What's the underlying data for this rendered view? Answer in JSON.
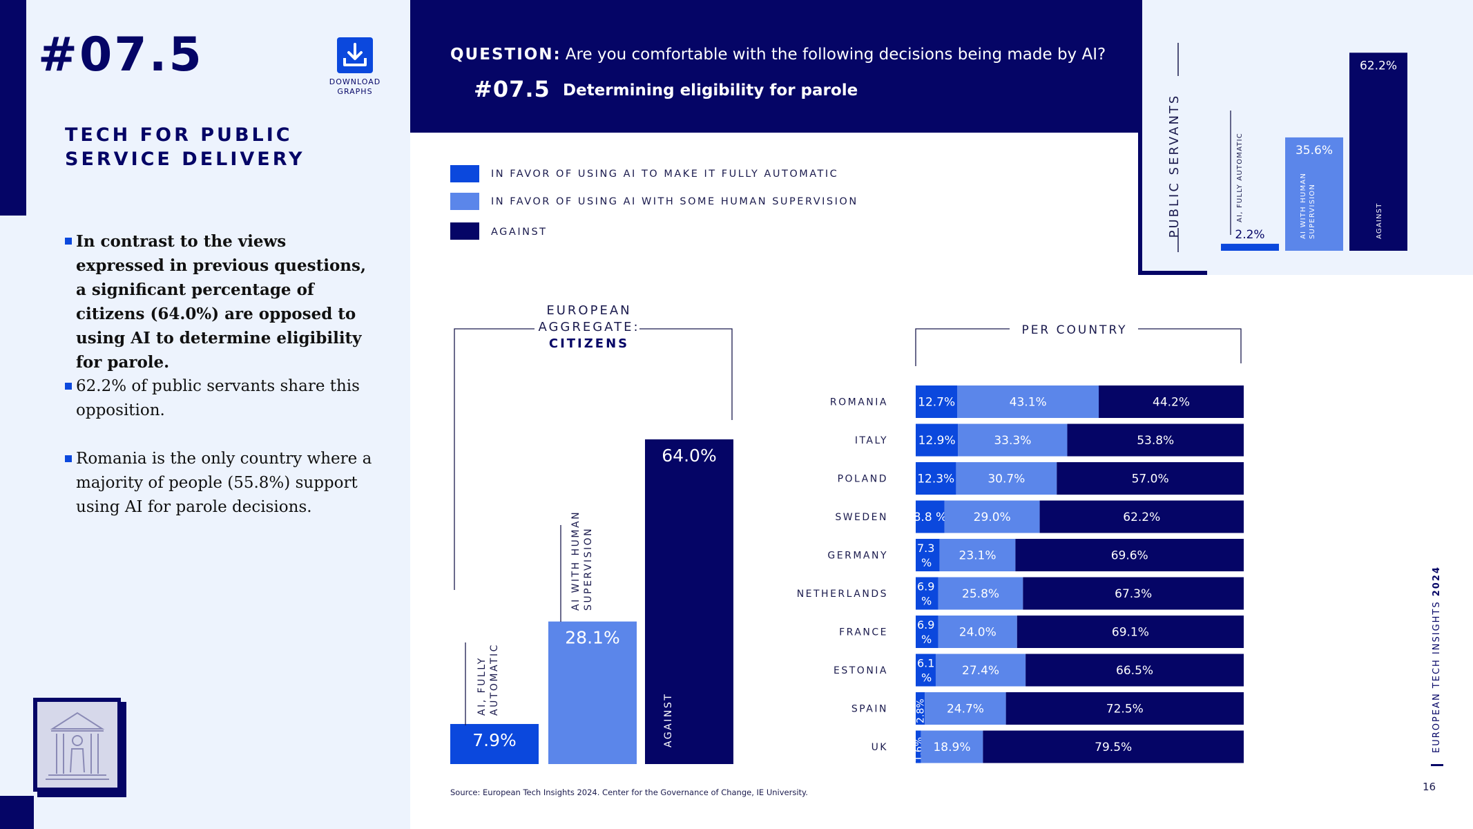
{
  "page": {
    "number": "#07.5",
    "section_title": "TECH FOR PUBLIC SERVICE DELIVERY",
    "download_label": "DOWNLOAD GRAPHS",
    "bullets": [
      "In contrast to the views expressed in previous questions, a significant percentage of citizens (64.0%) are opposed to using AI to determine eligibility for parole.",
      "62.2% of public servants share this opposition.",
      "Romania is the only country where a majority of people (55.8%) support using AI for parole decisions."
    ],
    "question_label": "QUESTION:",
    "question_text": "Are you comfortable with the following decisions being made by AI?",
    "sub_number": "#07.5",
    "sub_title": "Determining eligibility for parole",
    "source": "Source: European Tech Insights 2024. Center for the Governance of Change, IE University.",
    "side_label": "EUROPEAN TECH INSIGHTS",
    "side_year": "2024",
    "slide_number": "16"
  },
  "colors": {
    "navy": "#050566",
    "blue": "#0b48dd",
    "light_blue": "#5b86ea"
  },
  "legend": [
    {
      "label": "IN FAVOR OF USING AI TO MAKE IT FULLY AUTOMATIC",
      "color": "#0b48dd"
    },
    {
      "label": "IN FAVOR OF USING AI WITH SOME HUMAN SUPERVISION",
      "color": "#5b86ea"
    },
    {
      "label": "AGAINST",
      "color": "#050566"
    }
  ],
  "chart_data": [
    {
      "type": "bar",
      "title": "PUBLIC SERVANTS",
      "categories": [
        "AI, FULLY AUTOMATIC",
        "AI WITH HUMAN SUPERVISION",
        "AGAINST"
      ],
      "values": [
        2.2,
        35.6,
        62.2
      ],
      "labels": [
        "2.2%",
        "35.6%",
        "62.2%"
      ],
      "colors": [
        "#0b48dd",
        "#5b86ea",
        "#050566"
      ],
      "ylim": [
        0,
        64
      ]
    },
    {
      "type": "bar",
      "title_line1": "EUROPEAN",
      "title_line2": "AGGREGATE:",
      "title_line3": "CITIZENS",
      "categories": [
        "AI, FULLY AUTOMATIC",
        "AI WITH HUMAN SUPERVISION",
        "AGAINST"
      ],
      "values": [
        7.9,
        28.1,
        64.0
      ],
      "labels": [
        "7.9%",
        "28.1%",
        "64.0%"
      ],
      "colors": [
        "#0b48dd",
        "#5b86ea",
        "#050566"
      ],
      "ylim": [
        0,
        64
      ]
    },
    {
      "type": "bar",
      "orientation": "horizontal-stacked",
      "title": "PER COUNTRY",
      "categories": [
        "ROMANIA",
        "ITALY",
        "POLAND",
        "SWEDEN",
        "GERMANY",
        "NETHERLANDS",
        "FRANCE",
        "ESTONIA",
        "SPAIN",
        "UK"
      ],
      "series": [
        {
          "name": "AI, FULLY AUTOMATIC",
          "color": "#0b48dd",
          "values": [
            12.7,
            12.9,
            12.3,
            8.8,
            7.3,
            6.9,
            6.9,
            6.1,
            2.8,
            1.6
          ],
          "labels": [
            "12.7%",
            "12.9%",
            "12.3%",
            "8.8 %",
            "7.3 %",
            "6.9 %",
            "6.9 %",
            "6.1 %",
            "2.8%",
            "1.6%"
          ]
        },
        {
          "name": "AI WITH HUMAN SUPERVISION",
          "color": "#5b86ea",
          "values": [
            43.1,
            33.3,
            30.7,
            29.0,
            23.1,
            25.8,
            24.0,
            27.4,
            24.7,
            18.9
          ],
          "labels": [
            "43.1%",
            "33.3%",
            "30.7%",
            "29.0%",
            "23.1%",
            "25.8%",
            "24.0%",
            "27.4%",
            "24.7%",
            "18.9%"
          ]
        },
        {
          "name": "AGAINST",
          "color": "#050566",
          "values": [
            44.2,
            53.8,
            57.0,
            62.2,
            69.6,
            67.3,
            69.1,
            66.5,
            72.5,
            79.5
          ],
          "labels": [
            "44.2%",
            "53.8%",
            "57.0%",
            "62.2%",
            "69.6%",
            "67.3%",
            "69.1%",
            "66.5%",
            "72.5%",
            "79.5%"
          ]
        }
      ],
      "xlim": [
        0,
        100
      ]
    }
  ]
}
